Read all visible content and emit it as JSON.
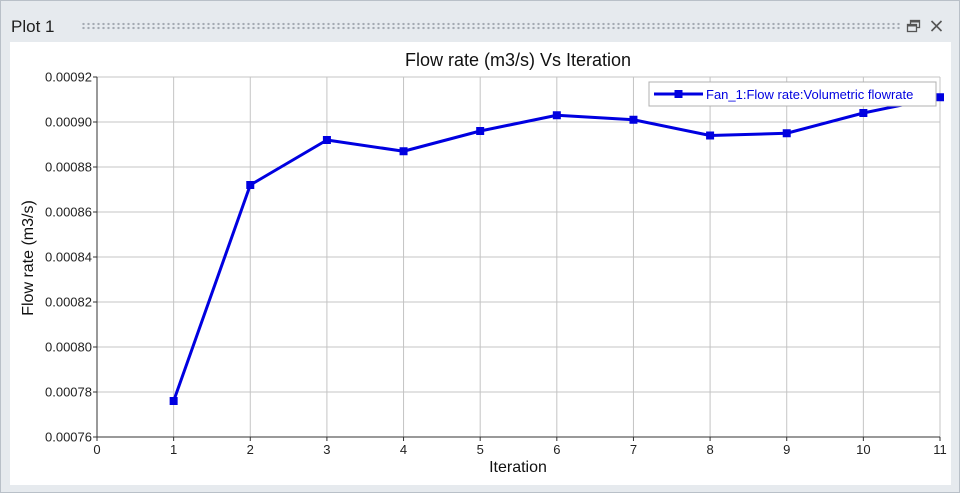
{
  "panel": {
    "title": "Plot 1",
    "float_icon": "restore-window-icon",
    "close_icon": "close-icon"
  },
  "chart_data": {
    "type": "line",
    "title": "Flow rate (m3/s) Vs Iteration",
    "xlabel": "Iteration",
    "ylabel": "Flow rate (m3/s)",
    "xlim": [
      0,
      11
    ],
    "ylim": [
      0.00076,
      0.00092
    ],
    "x_ticks": [
      "0",
      "1",
      "2",
      "3",
      "4",
      "5",
      "6",
      "7",
      "8",
      "9",
      "10",
      "11"
    ],
    "y_ticks": [
      "0.00076",
      "0.00078",
      "0.00080",
      "0.00082",
      "0.00084",
      "0.00086",
      "0.00088",
      "0.00090",
      "0.00092"
    ],
    "grid": true,
    "legend_position": "top-right",
    "series": [
      {
        "name": "Fan_1:Flow rate:Volumetric flowrate",
        "color": "#0000e0",
        "x": [
          1,
          2,
          3,
          4,
          5,
          6,
          7,
          8,
          9,
          10,
          11
        ],
        "y": [
          0.000776,
          0.000872,
          0.000892,
          0.000887,
          0.000896,
          0.000903,
          0.000901,
          0.000894,
          0.000895,
          0.000904,
          0.000911
        ]
      }
    ]
  }
}
